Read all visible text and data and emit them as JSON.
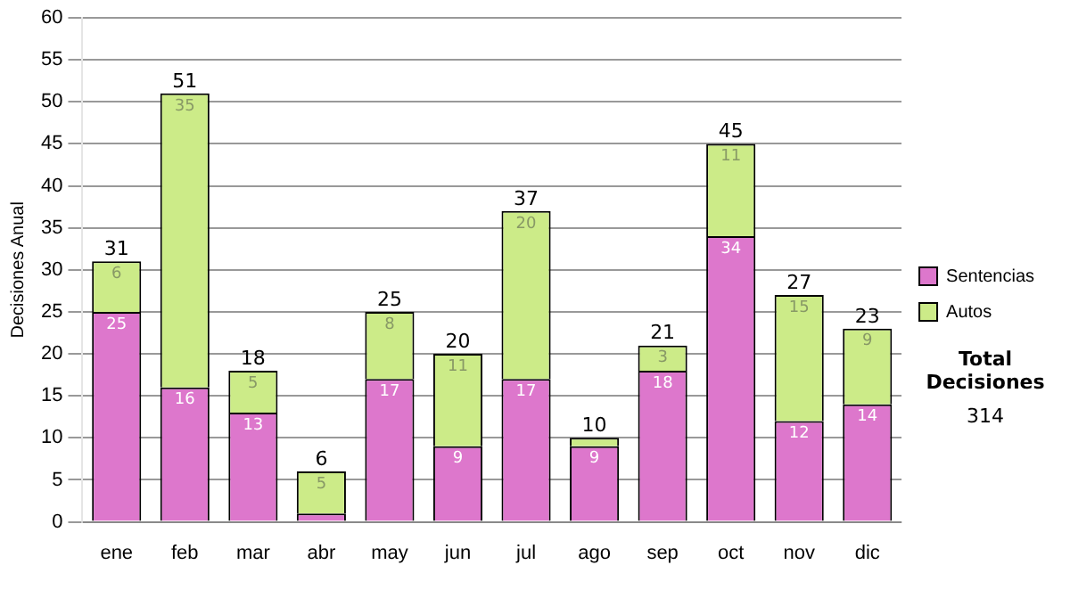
{
  "chart_data": {
    "type": "bar",
    "stacked": true,
    "ylabel": "Decisiones Anual",
    "categories": [
      "ene",
      "feb",
      "mar",
      "abr",
      "may",
      "jun",
      "jul",
      "ago",
      "sep",
      "oct",
      "nov",
      "dic"
    ],
    "series": [
      {
        "name": "Sentencias",
        "color": "#dd77cc",
        "values": [
          25,
          16,
          13,
          1,
          17,
          9,
          17,
          9,
          18,
          34,
          12,
          14
        ],
        "value_labels": [
          "25",
          "16",
          "13",
          null,
          "17",
          "9",
          "17",
          "9",
          "18",
          "34",
          "12",
          "14"
        ]
      },
      {
        "name": "Autos",
        "color": "#cceb88",
        "values": [
          6,
          35,
          5,
          5,
          8,
          11,
          20,
          1,
          3,
          11,
          15,
          9
        ],
        "value_labels": [
          "6",
          "35",
          "5",
          "5",
          "8",
          "11",
          "20",
          null,
          "3",
          "11",
          "15",
          "9"
        ]
      }
    ],
    "totals": [
      "31",
      "51",
      "18",
      "6",
      "25",
      "20",
      "37",
      "10",
      "21",
      "45",
      "27",
      "23"
    ],
    "ylim": [
      0,
      60
    ],
    "yticks": [
      0,
      5,
      10,
      15,
      20,
      25,
      30,
      35,
      40,
      45,
      50,
      55,
      60
    ],
    "grid": "y",
    "legend": "right",
    "annotations": [
      "Total Decisiones",
      "314"
    ]
  }
}
